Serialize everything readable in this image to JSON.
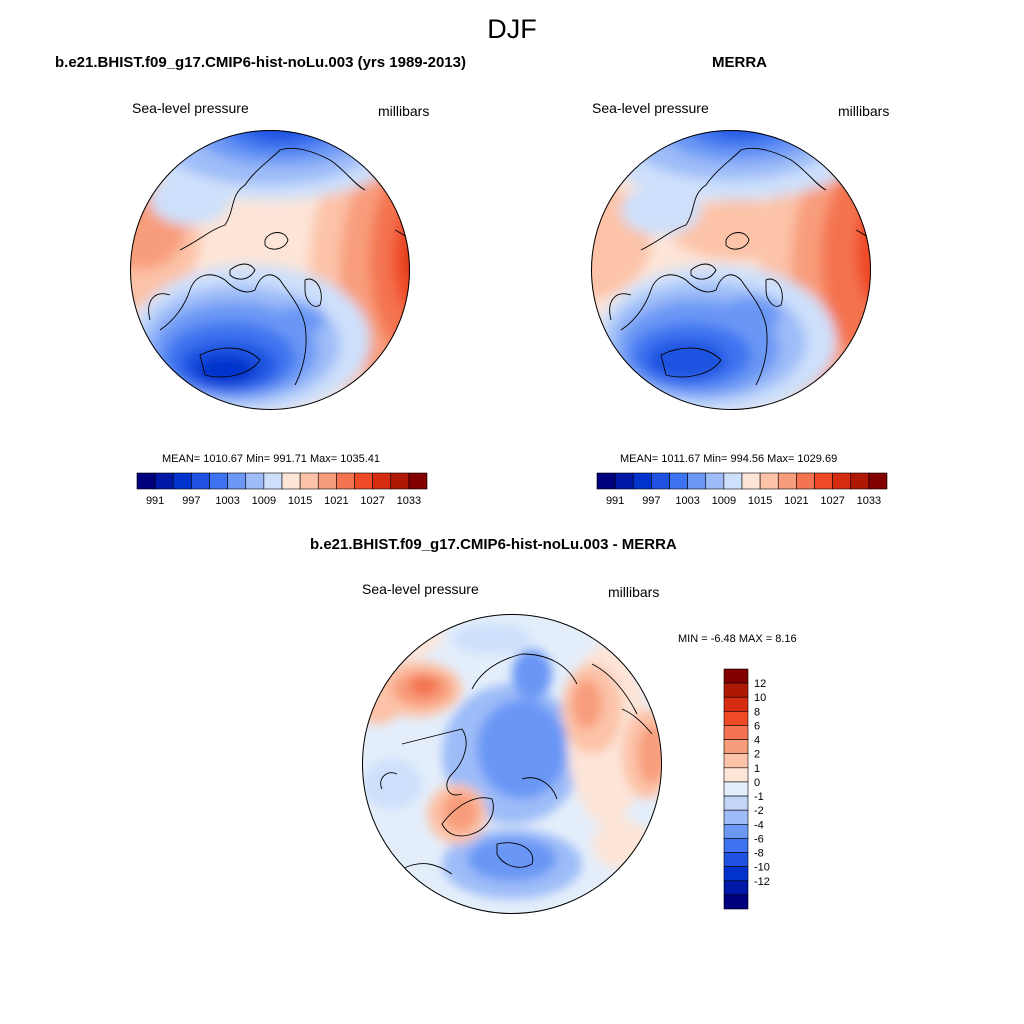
{
  "page": {
    "title": "DJF"
  },
  "panels": {
    "model": {
      "title": "b.e21.BHIST.f09_g17.CMIP6-hist-noLu.003 (yrs 1989-2013)",
      "field_label": "Sea-level pressure",
      "units_label": "millibars",
      "stats_text": "MEAN= 1010.67  Min= 991.71  Max= 1035.41"
    },
    "obs": {
      "title": "MERRA",
      "field_label": "Sea-level pressure",
      "units_label": "millibars",
      "stats_text": "MEAN= 1011.67  Min= 994.56  Max= 1029.69"
    },
    "diff": {
      "title": "b.e21.BHIST.f09_g17.CMIP6-hist-noLu.003 - MERRA",
      "field_label": "Sea-level pressure",
      "units_label": "millibars",
      "stats_text": "MIN =  -6.48 MAX =   8.16"
    }
  },
  "colorbars": {
    "abs": {
      "colors": [
        "#00007f",
        "#0018a8",
        "#0033cc",
        "#1f52e0",
        "#3d73f0",
        "#6b97f5",
        "#9dbcf8",
        "#cde0fb",
        "#fde5d8",
        "#fcc3a8",
        "#f89d7c",
        "#f47350",
        "#ef4a26",
        "#d62c12",
        "#b01806",
        "#820000"
      ],
      "tick_labels": [
        "991",
        "997",
        "1003",
        "1009",
        "1015",
        "1021",
        "1027",
        "1033"
      ]
    },
    "diff": {
      "colors": [
        "#820000",
        "#b01806",
        "#d62c12",
        "#ef4a26",
        "#f47350",
        "#f89d7c",
        "#fcc3a8",
        "#fde5d8",
        "#e4eefb",
        "#c3d6f8",
        "#9dbcf8",
        "#6b97f5",
        "#3d73f0",
        "#1f52e0",
        "#0033cc",
        "#0018a8",
        "#00007f"
      ],
      "tick_labels": [
        "12",
        "10",
        "8",
        "6",
        "4",
        "2",
        "1",
        "0",
        "-1",
        "-2",
        "-4",
        "-6",
        "-8",
        "-10",
        "-12"
      ]
    }
  }
}
